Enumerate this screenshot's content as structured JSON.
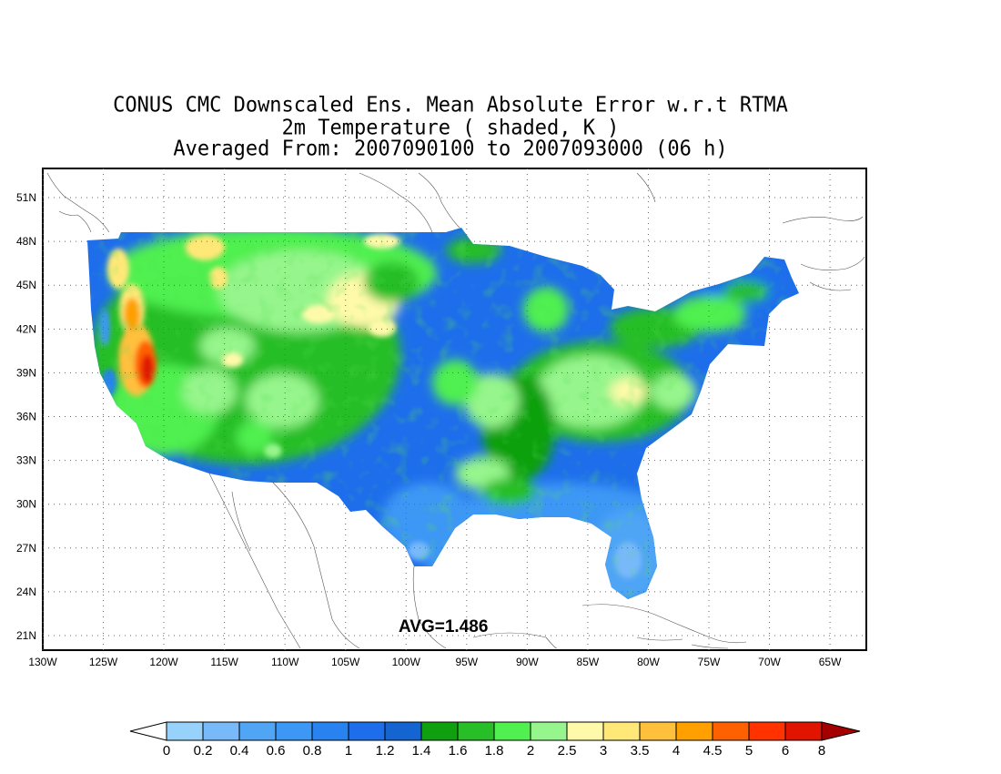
{
  "title": {
    "line1": "CONUS CMC Downscaled Ens. Mean Absolute Error w.r.t RTMA",
    "line2": "2m Temperature ( shaded, K )",
    "line3": "Averaged From: 2007090100 to 2007093000 (06 h)"
  },
  "annotation": "AVG=1.486",
  "axes": {
    "lon_labels": [
      "130W",
      "125W",
      "120W",
      "115W",
      "110W",
      "105W",
      "100W",
      "95W",
      "90W",
      "85W",
      "80W",
      "75W",
      "70W",
      "65W"
    ],
    "lat_labels": [
      "51N",
      "48N",
      "45N",
      "42N",
      "39N",
      "36N",
      "33N",
      "30N",
      "27N",
      "24N",
      "21N"
    ],
    "lon_range": [
      -130,
      -62
    ],
    "lat_range": [
      20,
      53
    ],
    "grid": "dotted"
  },
  "colorbar": {
    "labels": [
      "0",
      "0.2",
      "0.4",
      "0.6",
      "0.8",
      "1",
      "1.2",
      "1.4",
      "1.6",
      "1.8",
      "2",
      "2.5",
      "3",
      "3.5",
      "4",
      "4.5",
      "5",
      "6",
      "8"
    ],
    "colors": [
      "#96d2fa",
      "#78b9fa",
      "#50a5f5",
      "#3c97f5",
      "#2882f0",
      "#1e6eeb",
      "#1464d2",
      "#0fa00f",
      "#28be28",
      "#50f050",
      "#96f58c",
      "#fffaaa",
      "#ffe878",
      "#ffc03c",
      "#ffa000",
      "#ff6000",
      "#ff3200",
      "#e11400",
      "#c00000"
    ],
    "under_color": "#ffffff",
    "over_color": "#a50000"
  }
}
